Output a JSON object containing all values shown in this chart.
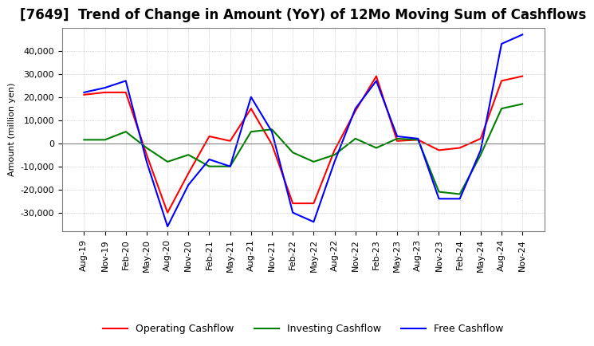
{
  "title": "[7649]  Trend of Change in Amount (YoY) of 12Mo Moving Sum of Cashflows",
  "ylabel": "Amount (million yen)",
  "xlabels": [
    "Aug-19",
    "Nov-19",
    "Feb-20",
    "May-20",
    "Aug-20",
    "Nov-20",
    "Feb-21",
    "May-21",
    "Aug-21",
    "Nov-21",
    "Feb-22",
    "May-22",
    "Aug-22",
    "Nov-22",
    "Feb-23",
    "May-23",
    "Aug-23",
    "Nov-23",
    "Feb-24",
    "May-24",
    "Aug-24",
    "Nov-24"
  ],
  "operating": [
    21000,
    22000,
    22000,
    -5000,
    -30000,
    -13000,
    3000,
    1000,
    15000,
    -500,
    -26000,
    -26000,
    -3000,
    14000,
    29000,
    1000,
    1500,
    -3000,
    -2000,
    2000,
    27000,
    29000
  ],
  "investing": [
    1500,
    1500,
    5000,
    -2000,
    -8000,
    -5000,
    -10000,
    -10000,
    5000,
    6000,
    -4000,
    -8000,
    -5000,
    2000,
    -2000,
    2000,
    1500,
    -21000,
    -22000,
    -5000,
    15000,
    17000
  ],
  "free": [
    22000,
    24000,
    27000,
    -8000,
    -36000,
    -18000,
    -7000,
    -10000,
    20000,
    5000,
    -30000,
    -34000,
    -8000,
    15000,
    27000,
    3000,
    2000,
    -24000,
    -24000,
    -3000,
    43000,
    47000
  ],
  "ylim": [
    -38000,
    50000
  ],
  "yticks": [
    -30000,
    -20000,
    -10000,
    0,
    10000,
    20000,
    30000,
    40000
  ],
  "operating_color": "#ff0000",
  "investing_color": "#008000",
  "free_color": "#0000ff",
  "bg_color": "#ffffff",
  "grid_color": "#b0b0b0",
  "title_fontsize": 12,
  "legend_fontsize": 9,
  "tick_fontsize": 8
}
